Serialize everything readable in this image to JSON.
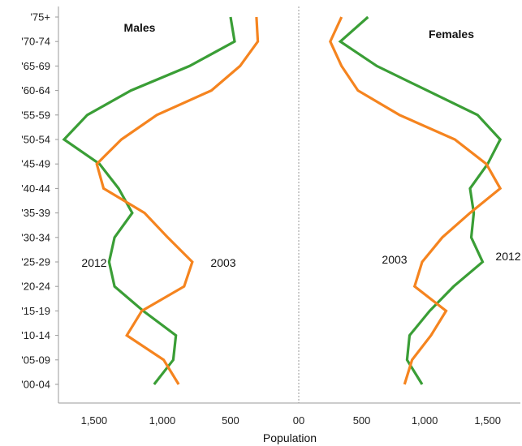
{
  "chart_data": {
    "type": "line",
    "subtype": "population-pyramid",
    "xlabel": "Population",
    "x_tick_labels": [
      "1,500",
      "1,000",
      "500",
      "00",
      "500",
      "1,000",
      "1,500"
    ],
    "categories": [
      "'75+",
      "'70-74",
      "'65-69",
      "'60-64",
      "'55-59",
      "'50-54",
      "'45-49",
      "'40-44",
      "'35-39",
      "'30-34",
      "'25-29",
      "'20-24",
      "'15-19",
      "'10-14",
      "'05-09",
      "'00-04"
    ],
    "panels": [
      {
        "title": "Males",
        "direction": "left",
        "xlim": [
          0,
          1880
        ],
        "series": [
          {
            "name": "2012",
            "color": "#3a9e36",
            "values": [
              500,
              470,
              800,
              1230,
              1550,
              1720,
              1460,
              1320,
              1220,
              1350,
              1390,
              1350,
              1140,
              900,
              920,
              1060
            ]
          },
          {
            "name": "2003",
            "color": "#f5841f",
            "values": [
              310,
              300,
              430,
              640,
              1040,
              1300,
              1480,
              1430,
              1130,
              960,
              780,
              840,
              1150,
              1260,
              990,
              880
            ]
          }
        ]
      },
      {
        "title": "Females",
        "direction": "right",
        "xlim": [
          0,
          1760
        ],
        "series": [
          {
            "name": "2012",
            "color": "#3a9e36",
            "values": [
              550,
              330,
              620,
              1020,
              1420,
              1600,
              1500,
              1360,
              1390,
              1370,
              1460,
              1230,
              1040,
              880,
              860,
              980
            ]
          },
          {
            "name": "2003",
            "color": "#f5841f",
            "values": [
              340,
              250,
              340,
              470,
              800,
              1240,
              1490,
              1600,
              1360,
              1140,
              980,
              920,
              1170,
              1050,
              900,
              840
            ]
          }
        ]
      }
    ],
    "series_labels": [
      {
        "text": "2012",
        "panel": "Males"
      },
      {
        "text": "2003",
        "panel": "Males"
      },
      {
        "text": "2003",
        "panel": "Females"
      },
      {
        "text": "2012",
        "panel": "Females"
      }
    ],
    "grid": false,
    "legend": "none"
  }
}
